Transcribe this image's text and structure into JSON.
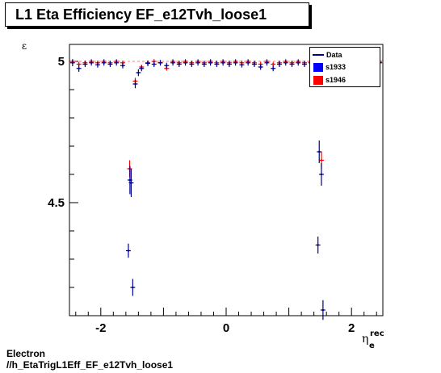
{
  "header": {
    "title": "L1 Eta Efficiency EF_e12Tvh_loose1"
  },
  "footer": {
    "line1": "Electron",
    "line2": "//h_EtaTrigL1Eff_EF_e12Tvh_loose1"
  },
  "legend": [
    {
      "label": "Data",
      "kind": "line",
      "color": "#00008b"
    },
    {
      "label": "s1933",
      "kind": "box",
      "color": "#0000ff"
    },
    {
      "label": "s1946",
      "kind": "box",
      "color": "#ff0000"
    }
  ],
  "chart_data": {
    "type": "scatter",
    "title": "L1 Eta Efficiency EF_e12Tvh_loose1",
    "xlabel": "η_e^rec",
    "ylabel": "ε",
    "xlim": [
      -2.5,
      2.5
    ],
    "ylim": [
      4.1,
      5.06
    ],
    "x_ticks": [
      "-2",
      "0",
      "2"
    ],
    "y_ticks": [
      "4.5",
      "5"
    ],
    "grid": false,
    "legend_position": "top-right",
    "series": [
      {
        "name": "Data",
        "color": "#00008b",
        "points": [
          [
            -2.45,
            4.995,
            0.012
          ],
          [
            -2.35,
            4.975,
            0.012
          ],
          [
            -2.25,
            4.99,
            0.01
          ],
          [
            -2.15,
            4.995,
            0.01
          ],
          [
            -2.05,
            4.988,
            0.01
          ],
          [
            -1.95,
            4.995,
            0.01
          ],
          [
            -1.85,
            4.99,
            0.01
          ],
          [
            -1.75,
            4.995,
            0.01
          ],
          [
            -1.65,
            4.985,
            0.01
          ],
          [
            -1.56,
            4.33,
            0.025
          ],
          [
            -1.535,
            4.58,
            0.05
          ],
          [
            -1.515,
            4.57,
            0.05
          ],
          [
            -1.49,
            4.2,
            0.03
          ],
          [
            -1.45,
            4.92,
            0.015
          ],
          [
            -1.4,
            4.96,
            0.012
          ],
          [
            -1.35,
            4.975,
            0.01
          ],
          [
            -1.25,
            4.993,
            0.01
          ],
          [
            -1.15,
            4.99,
            0.01
          ],
          [
            -1.05,
            4.995,
            0.01
          ],
          [
            -0.95,
            4.985,
            0.01
          ],
          [
            -0.85,
            4.995,
            0.01
          ],
          [
            -0.75,
            4.99,
            0.01
          ],
          [
            -0.65,
            4.995,
            0.01
          ],
          [
            -0.55,
            4.99,
            0.01
          ],
          [
            -0.45,
            4.995,
            0.01
          ],
          [
            -0.35,
            4.99,
            0.01
          ],
          [
            -0.25,
            4.995,
            0.01
          ],
          [
            -0.15,
            4.99,
            0.01
          ],
          [
            -0.05,
            4.995,
            0.01
          ],
          [
            0.05,
            4.99,
            0.01
          ],
          [
            0.15,
            4.995,
            0.01
          ],
          [
            0.25,
            4.988,
            0.01
          ],
          [
            0.35,
            4.995,
            0.01
          ],
          [
            0.45,
            4.99,
            0.01
          ],
          [
            0.55,
            4.98,
            0.01
          ],
          [
            0.65,
            4.995,
            0.01
          ],
          [
            0.75,
            4.975,
            0.01
          ],
          [
            0.85,
            4.99,
            0.01
          ],
          [
            0.95,
            4.995,
            0.01
          ],
          [
            1.05,
            4.99,
            0.01
          ],
          [
            1.15,
            4.995,
            0.01
          ],
          [
            1.25,
            4.99,
            0.01
          ],
          [
            1.35,
            4.995,
            0.01
          ],
          [
            1.41,
            4.93,
            0.015
          ],
          [
            1.465,
            4.35,
            0.03
          ],
          [
            1.485,
            4.68,
            0.04
          ],
          [
            1.52,
            4.6,
            0.04
          ],
          [
            1.545,
            4.12,
            0.035
          ],
          [
            1.65,
            4.995,
            0.01
          ],
          [
            1.75,
            4.99,
            0.01
          ],
          [
            1.85,
            4.995,
            0.01
          ],
          [
            1.95,
            4.985,
            0.01
          ],
          [
            2.05,
            4.995,
            0.01
          ],
          [
            2.15,
            4.99,
            0.01
          ],
          [
            2.25,
            4.995,
            0.01
          ],
          [
            2.35,
            4.985,
            0.012
          ],
          [
            2.45,
            4.995,
            0.012
          ]
        ]
      },
      {
        "name": "s1946",
        "color": "#ff0000",
        "points": [
          [
            -2.45,
            5.0,
            0.008
          ],
          [
            -2.35,
            4.99,
            0.008
          ],
          [
            -2.25,
            4.995,
            0.008
          ],
          [
            -2.15,
            5.0,
            0.008
          ],
          [
            -2.05,
            4.995,
            0.008
          ],
          [
            -1.95,
            5.0,
            0.008
          ],
          [
            -1.85,
            4.995,
            0.008
          ],
          [
            -1.75,
            5.0,
            0.008
          ],
          [
            -1.65,
            4.995,
            0.008
          ],
          [
            -1.54,
            4.62,
            0.03
          ],
          [
            -1.45,
            4.93,
            0.012
          ],
          [
            -1.35,
            4.98,
            0.008
          ],
          [
            -1.25,
            4.995,
            0.008
          ],
          [
            -1.15,
            5.0,
            0.008
          ],
          [
            -1.05,
            4.995,
            0.008
          ],
          [
            -0.95,
            4.975,
            0.008
          ],
          [
            -0.85,
            5.0,
            0.008
          ],
          [
            -0.75,
            4.995,
            0.008
          ],
          [
            -0.65,
            5.0,
            0.008
          ],
          [
            -0.55,
            4.995,
            0.008
          ],
          [
            -0.45,
            5.0,
            0.008
          ],
          [
            -0.35,
            4.995,
            0.008
          ],
          [
            -0.25,
            5.0,
            0.008
          ],
          [
            -0.15,
            4.995,
            0.008
          ],
          [
            -0.05,
            5.0,
            0.008
          ],
          [
            0.05,
            4.995,
            0.008
          ],
          [
            0.15,
            5.0,
            0.008
          ],
          [
            0.25,
            4.995,
            0.008
          ],
          [
            0.35,
            5.0,
            0.008
          ],
          [
            0.45,
            4.995,
            0.008
          ],
          [
            0.55,
            4.99,
            0.008
          ],
          [
            0.65,
            5.0,
            0.008
          ],
          [
            0.75,
            4.99,
            0.008
          ],
          [
            0.85,
            4.995,
            0.008
          ],
          [
            0.95,
            5.0,
            0.008
          ],
          [
            1.05,
            4.995,
            0.008
          ],
          [
            1.15,
            5.0,
            0.008
          ],
          [
            1.25,
            4.995,
            0.008
          ],
          [
            1.35,
            5.0,
            0.008
          ],
          [
            1.43,
            4.96,
            0.012
          ],
          [
            1.52,
            4.65,
            0.03
          ],
          [
            1.65,
            5.0,
            0.008
          ],
          [
            1.75,
            4.995,
            0.008
          ],
          [
            1.85,
            5.0,
            0.008
          ],
          [
            1.95,
            4.995,
            0.008
          ],
          [
            2.05,
            5.0,
            0.008
          ],
          [
            2.15,
            4.995,
            0.008
          ],
          [
            2.25,
            5.0,
            0.008
          ],
          [
            2.35,
            4.995,
            0.008
          ],
          [
            2.45,
            5.0,
            0.008
          ]
        ]
      }
    ]
  }
}
